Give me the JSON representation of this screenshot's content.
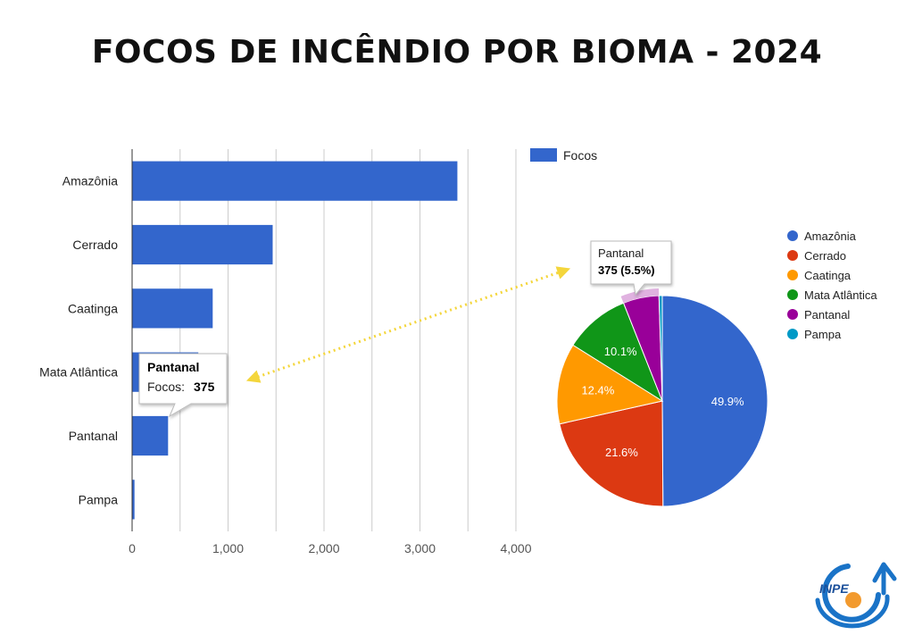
{
  "page": {
    "title": "FOCOS DE INCÊNDIO POR BIOMA - 2024"
  },
  "logo": {
    "text": "INPE"
  },
  "colors": {
    "bar": "#3366cc",
    "grid": "#cccccc",
    "arrow": "#f4d63c",
    "pie": [
      "#3366cc",
      "#dc3912",
      "#ff9900",
      "#109618",
      "#990099",
      "#0099c6"
    ]
  },
  "chart_data": [
    {
      "type": "bar",
      "orientation": "horizontal",
      "categories": [
        "Amazônia",
        "Cerrado",
        "Caatinga",
        "Mata Atlântica",
        "Pantanal",
        "Pampa"
      ],
      "series": [
        {
          "name": "Focos",
          "values": [
            3390,
            1465,
            840,
            690,
            375,
            25
          ]
        }
      ],
      "xlim": [
        0,
        4000
      ],
      "xticks": [
        0,
        1000,
        2000,
        3000,
        4000
      ],
      "xtick_labels": [
        "0",
        "1,000",
        "2,000",
        "3,000",
        "4,000"
      ],
      "legend": {
        "label": "Focos",
        "position": "top-right"
      },
      "tooltip": {
        "title": "Pantanal",
        "label": "Focos:",
        "value": "375"
      }
    },
    {
      "type": "pie",
      "labels": [
        "Amazônia",
        "Cerrado",
        "Caatinga",
        "Mata Atlântica",
        "Pantanal",
        "Pampa"
      ],
      "values": [
        49.9,
        21.6,
        12.4,
        10.1,
        5.5,
        0.5
      ],
      "slice_labels": [
        "49.9%",
        "21.6%",
        "12.4%",
        "10.1%",
        "",
        ""
      ],
      "legend_position": "right",
      "tooltip": {
        "title": "Pantanal",
        "value": "375 (5.5%)"
      }
    }
  ]
}
